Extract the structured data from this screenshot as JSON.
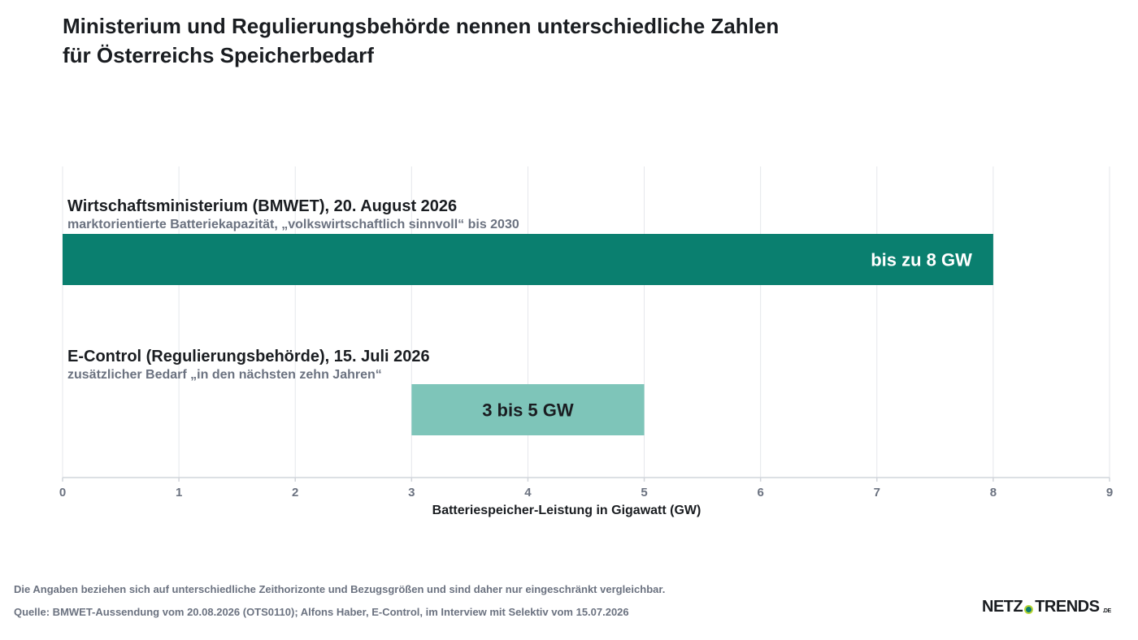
{
  "title": {
    "line1": "Ministerium und Regulierungsbehörde nennen unterschiedliche Zahlen",
    "line2": "für Österreichs Speicherbedarf"
  },
  "chart_data": {
    "type": "bar",
    "orientation": "horizontal",
    "xlabel": "Batteriespeicher-Leistung in Gigawatt (GW)",
    "xlim": [
      0,
      9
    ],
    "xticks": [
      0,
      1,
      2,
      3,
      4,
      5,
      6,
      7,
      8,
      9
    ],
    "grid": true,
    "bars": [
      {
        "label": "Wirtschaftsministerium (BMWET), 20. August 2026",
        "sublabel": "marktorientierte Batteriekapazität, „volkswirtschaftlich sinnvoll“ bis 2030",
        "start": 0,
        "end": 8,
        "value_label": "bis zu 8 GW",
        "color": "#0a7f6f",
        "label_color": "#ffffff",
        "label_align": "right"
      },
      {
        "label": "E-Control (Regulierungsbehörde), 15. Juli 2026",
        "sublabel": "zusätzlicher Bedarf „in den nächsten zehn Jahren“",
        "start": 3,
        "end": 5,
        "value_label": "3 bis 5 GW",
        "color": "#7ec5b9",
        "label_color": "#1a1d21",
        "label_align": "center"
      }
    ]
  },
  "footer": {
    "note": "Die Angaben beziehen sich auf unterschiedliche Zeithorizonte und Bezugsgrößen und sind daher nur eingeschränkt vergleichbar.",
    "source": "Quelle: BMWET-Aussendung vom 20.08.2026 (OTS0110); Alfons Haber, E-Control, im Interview mit Selektiv vom 15.07.2026"
  },
  "logo": {
    "part1": "NETZ",
    "part2": "TRENDS",
    "suffix": ".DE"
  },
  "colors": {
    "grid": "#e5e7eb",
    "axis": "#d1d5db",
    "tick_text": "#6b7280",
    "sublabel": "#6b7280"
  }
}
